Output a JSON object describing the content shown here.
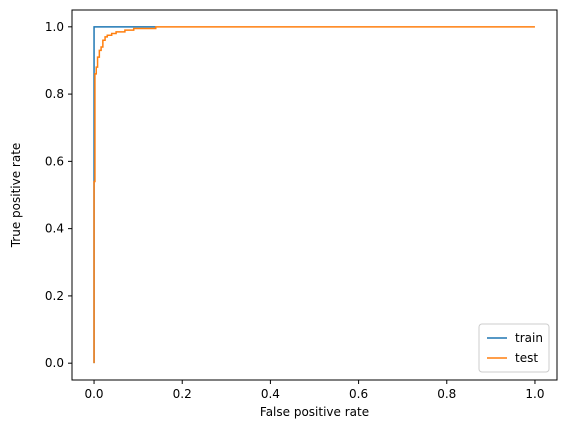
{
  "chart_data": {
    "type": "line",
    "xlabel": "False positive rate",
    "ylabel": "True positive rate",
    "xlim": [
      -0.05,
      1.05
    ],
    "ylim": [
      -0.05,
      1.05
    ],
    "xticks": [
      0.0,
      0.2,
      0.4,
      0.6,
      0.8,
      1.0
    ],
    "yticks": [
      0.0,
      0.2,
      0.4,
      0.6,
      0.8,
      1.0
    ],
    "xtick_labels": [
      "0.0",
      "0.2",
      "0.4",
      "0.6",
      "0.8",
      "1.0"
    ],
    "ytick_labels": [
      "0.0",
      "0.2",
      "0.4",
      "0.6",
      "0.8",
      "1.0"
    ],
    "grid": false,
    "legend_position": "bottom-right",
    "series": [
      {
        "name": "train",
        "color": "#1f77b4",
        "x": [
          0.0,
          0.0,
          0.0,
          0.0,
          0.14
        ],
        "y": [
          0.0,
          0.54,
          0.88,
          1.0,
          1.0
        ]
      },
      {
        "name": "test",
        "color": "#ff7f0e",
        "x": [
          0.0,
          0.0,
          0.002,
          0.002,
          0.005,
          0.005,
          0.008,
          0.008,
          0.012,
          0.012,
          0.016,
          0.016,
          0.02,
          0.02,
          0.025,
          0.025,
          0.03,
          0.03,
          0.04,
          0.04,
          0.05,
          0.05,
          0.07,
          0.07,
          0.09,
          0.09,
          0.14,
          0.14,
          1.0
        ],
        "y": [
          0.0,
          0.54,
          0.54,
          0.86,
          0.86,
          0.88,
          0.88,
          0.91,
          0.91,
          0.93,
          0.93,
          0.94,
          0.94,
          0.96,
          0.96,
          0.97,
          0.97,
          0.975,
          0.975,
          0.98,
          0.98,
          0.985,
          0.985,
          0.99,
          0.99,
          0.995,
          0.995,
          1.0,
          1.0
        ]
      }
    ]
  }
}
